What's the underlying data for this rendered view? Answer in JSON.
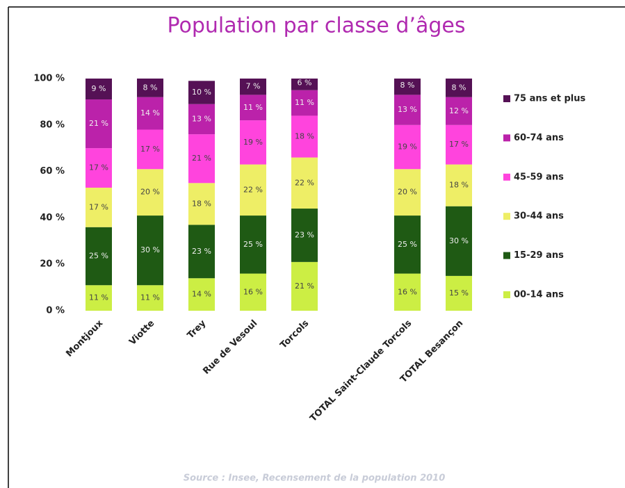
{
  "chart_data": {
    "type": "stacked_bar",
    "title": "Population par classe d’âges",
    "source": "Source : Insee, Recensement de la population 2010",
    "categories": [
      "Montjoux",
      "Viotte",
      "Trey",
      "Rue de Vesoul",
      "Torcols",
      null,
      "TOTAL Saint-Claude Torcols",
      "TOTAL Besançon"
    ],
    "series": [
      {
        "name": "00-14 ans",
        "color": "#ccee44",
        "values": [
          11,
          11,
          14,
          16,
          21,
          null,
          16,
          15
        ],
        "value_labels": [
          "11 %",
          "11 %",
          "14 %",
          "16 %",
          "21 %",
          null,
          "16 %",
          "15 %"
        ]
      },
      {
        "name": "15-29 ans",
        "color": "#1f5a14",
        "values": [
          25,
          30,
          23,
          25,
          23,
          null,
          25,
          30
        ],
        "value_labels": [
          "25 %",
          "30 %",
          "23 %",
          "25 %",
          "23 %",
          null,
          "25 %",
          "30 %"
        ]
      },
      {
        "name": "30-44 ans",
        "color": "#eeee66",
        "values": [
          17,
          20,
          18,
          22,
          22,
          null,
          20,
          18
        ],
        "value_labels": [
          "17 %",
          "20 %",
          "18 %",
          "22 %",
          "22 %",
          null,
          "20 %",
          "18 %"
        ]
      },
      {
        "name": "45-59 ans",
        "color": "#ff44dd",
        "values": [
          17,
          17,
          21,
          19,
          18,
          null,
          19,
          17
        ],
        "value_labels": [
          "17 %",
          "17 %",
          "21 %",
          "19 %",
          "18 %",
          null,
          "19 %",
          "17 %"
        ]
      },
      {
        "name": "60-74 ans",
        "color": "#bb22aa",
        "values": [
          21,
          14,
          13,
          11,
          11,
          null,
          13,
          12
        ],
        "value_labels": [
          "21 %",
          "14 %",
          "13 %",
          "11 %",
          "11 %",
          null,
          "13 %",
          "12 %"
        ]
      },
      {
        "name": "75 ans et plus",
        "color": "#551155",
        "values": [
          9,
          8,
          10,
          7,
          6,
          null,
          8,
          8
        ],
        "value_labels": [
          "9 %",
          "8 %",
          "10 %",
          "7 %",
          "6 %",
          null,
          "8 %",
          "8 %"
        ]
      }
    ],
    "ylim": [
      0,
      100
    ],
    "yticks": [
      {
        "value": 0,
        "label": "0 %"
      },
      {
        "value": 20,
        "label": "20 %"
      },
      {
        "value": 40,
        "label": "40 %"
      },
      {
        "value": 60,
        "label": "60 %"
      },
      {
        "value": 80,
        "label": "80 %"
      },
      {
        "value": 100,
        "label": "100 %"
      }
    ],
    "legend": "right"
  }
}
